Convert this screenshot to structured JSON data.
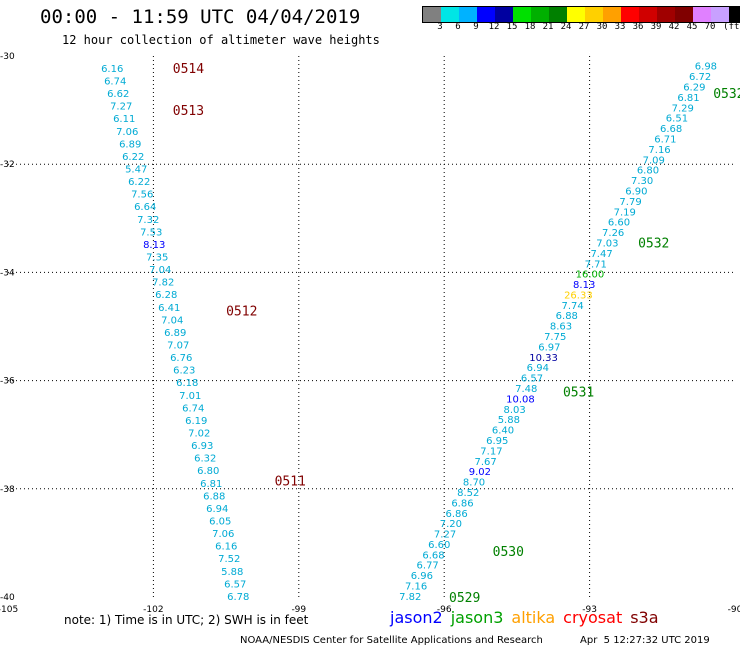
{
  "title": "00:00 - 11:59 UTC 04/04/2019",
  "subtitle": "12 hour collection of altimeter wave heights",
  "legend": {
    "unit": "(ft)",
    "colors": [
      "#808080",
      "#00e5e5",
      "#00b2ff",
      "#0000ff",
      "#0000a0",
      "#00e000",
      "#00b000",
      "#008000",
      "#ffff00",
      "#ffd000",
      "#ffa000",
      "#ff0000",
      "#d00000",
      "#a00000",
      "#800000",
      "#e080ff",
      "#c8a0ff",
      "#000000"
    ],
    "ticks": [
      "3",
      "6",
      "9",
      "12",
      "15",
      "18",
      "21",
      "24",
      "27",
      "30",
      "33",
      "36",
      "39",
      "42",
      "45",
      "70"
    ]
  },
  "axes": {
    "lon_labels": [
      "-105",
      "-102",
      "-99",
      "-96",
      "-93",
      "-90"
    ],
    "lat_labels": [
      "-30",
      "-32",
      "-34",
      "-36",
      "-38",
      "-40"
    ],
    "lon_range": [
      -105,
      -90
    ],
    "lat_range": [
      -30,
      -40
    ]
  },
  "tracks": [
    {
      "color": "#00aad4",
      "values": [
        "6.16",
        "6.74",
        "6.62",
        "7.27",
        "6.11",
        "7.06",
        "6.89",
        "6.22",
        "5.47",
        "6.22",
        "7.56",
        "6.64",
        "7.32",
        "7.53",
        "8.13",
        "7.35",
        "7.04",
        "7.82",
        "6.28",
        "6.41",
        "7.04",
        "6.89",
        "7.07",
        "6.76",
        "6.23",
        "6.18",
        "7.01",
        "6.74",
        "6.19",
        "7.02",
        "6.93",
        "6.32",
        "6.80",
        "6.81",
        "6.88",
        "6.94",
        "6.05",
        "7.06",
        "6.16",
        "7.52",
        "5.88",
        "6.57",
        "6.78"
      ],
      "start": [
        -102.85,
        -30.22
      ],
      "end": [
        -100.25,
        -39.98
      ]
    },
    {
      "color": "#00aad4",
      "values": [
        "7.82",
        "7.16",
        "6.96",
        "6.77",
        "6.68",
        "6.60",
        "7.27",
        "7.20",
        "6.86",
        "6.86",
        "8.52",
        "8.70",
        "9.02",
        "7.67",
        "7.17",
        "6.95",
        "6.40",
        "5.88",
        "8.03",
        "10.08",
        "7.48",
        "6.57",
        "6.94",
        "10.33",
        "6.97",
        "7.75",
        "8.63",
        "6.88",
        "7.74",
        "26.33",
        "8.13",
        "16.00",
        "7.71",
        "7.47",
        "7.03",
        "7.26",
        "6.60",
        "7.19",
        "7.79",
        "6.90",
        "7.30",
        "6.80",
        "7.09",
        "7.16",
        "6.71",
        "6.68",
        "6.51",
        "7.29",
        "6.81",
        "6.29",
        "6.72",
        "6.98"
      ],
      "start": [
        -96.7,
        -39.98
      ],
      "end": [
        -90.6,
        -30.18
      ]
    }
  ],
  "value_colors": {
    "10.08": "#0000ff",
    "10.33": "#0000a0",
    "9.02": "#0000ff",
    "8.13": "#0000ff",
    "26.33": "#ffd000",
    "16.00": "#00b000"
  },
  "passes": [
    {
      "label": "0514",
      "lon": -101.6,
      "lat": -30.22,
      "color": "#800000"
    },
    {
      "label": "0513",
      "lon": -101.6,
      "lat": -31.0,
      "color": "#800000"
    },
    {
      "label": "0512",
      "lon": -100.5,
      "lat": -34.7,
      "color": "#800000"
    },
    {
      "label": "0511",
      "lon": -99.5,
      "lat": -37.85,
      "color": "#800000"
    },
    {
      "label": "0532",
      "lon": -90.45,
      "lat": -30.68,
      "color": "#008000"
    },
    {
      "label": "0532",
      "lon": -92.0,
      "lat": -33.45,
      "color": "#008000"
    },
    {
      "label": "0531",
      "lon": -93.55,
      "lat": -36.2,
      "color": "#008000"
    },
    {
      "label": "0530",
      "lon": -95.0,
      "lat": -39.15,
      "color": "#008000"
    },
    {
      "label": "0529",
      "lon": -95.9,
      "lat": -40.0,
      "color": "#008000"
    }
  ],
  "note": "note: 1) Time is in UTC; 2) SWH is in feet",
  "satellites": [
    {
      "name": "jason2",
      "color": "#0000ff"
    },
    {
      "name": "jason3",
      "color": "#00a000"
    },
    {
      "name": "altika",
      "color": "#ffa000"
    },
    {
      "name": "cryosat",
      "color": "#ff0000"
    },
    {
      "name": "s3a",
      "color": "#800000"
    }
  ],
  "credit": "NOAA/NESDIS Center for Satellite Applications and Research",
  "credit_date": "Apr  5 12:27:32 UTC 2019"
}
